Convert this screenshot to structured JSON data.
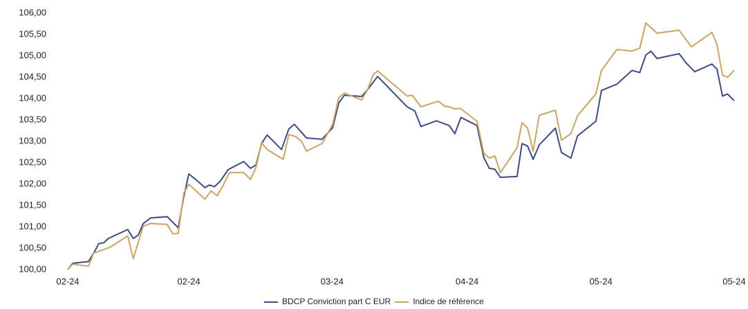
{
  "chart_data": {
    "type": "line",
    "series": [
      {
        "name": "BDCP Conviction part C EUR",
        "color": "#3d4a82",
        "x": [
          0,
          0.9,
          3.7,
          4.6,
          5.6,
          6.5,
          7.3,
          10.8,
          11.8,
          12.7,
          13.6,
          14.9,
          17.9,
          19.9,
          20.9,
          21.8,
          23.3,
          24.7,
          25.5,
          26.4,
          27.4,
          28.9,
          31.7,
          32.9,
          33.9,
          34.9,
          35.9,
          38.5,
          39.8,
          40.8,
          43.0,
          45.8,
          47.7,
          48.8,
          49.8,
          51.9,
          52.9,
          54.0,
          55.8,
          61.1,
          62.5,
          63.6,
          66.4,
          68.7,
          69.7,
          70.8,
          73.7,
          74.9,
          75.9,
          76.9,
          77.9,
          80.9,
          81.8,
          82.8,
          83.8,
          84.9,
          87.8,
          88.9,
          90.6,
          91.8,
          95.1,
          96.1,
          98.9,
          101.6,
          103.0,
          104.1,
          105.0,
          106.1,
          110.1,
          111.3,
          112.9,
          116.0,
          116.9,
          117.9,
          118.8,
          120.0
        ],
        "values": [
          100.0,
          100.15,
          100.19,
          100.37,
          100.61,
          100.63,
          100.73,
          100.94,
          100.73,
          100.81,
          101.08,
          101.21,
          101.24,
          100.98,
          101.71,
          102.24,
          102.08,
          101.92,
          101.98,
          101.94,
          102.06,
          102.34,
          102.53,
          102.37,
          102.45,
          102.95,
          103.15,
          102.81,
          103.29,
          103.4,
          103.08,
          103.05,
          103.32,
          103.9,
          104.08,
          104.06,
          104.05,
          104.21,
          104.52,
          103.81,
          103.71,
          103.35,
          103.48,
          103.37,
          103.18,
          103.56,
          103.37,
          102.63,
          102.37,
          102.35,
          102.16,
          102.18,
          102.95,
          102.89,
          102.58,
          102.92,
          103.31,
          102.74,
          102.61,
          103.13,
          103.47,
          104.19,
          104.34,
          104.66,
          104.61,
          105.02,
          105.11,
          104.94,
          105.05,
          104.84,
          104.63,
          104.81,
          104.69,
          104.06,
          104.11,
          103.95
        ]
      },
      {
        "name": "Indice de référence",
        "color": "#c9a464",
        "x": [
          0,
          0.9,
          3.7,
          4.7,
          6.5,
          7.7,
          10.8,
          11.8,
          13.6,
          14.9,
          17.9,
          18.9,
          19.9,
          20.9,
          21.8,
          24.7,
          25.8,
          26.9,
          27.9,
          29.1,
          31.7,
          32.9,
          33.9,
          34.9,
          35.9,
          38.8,
          39.8,
          41.1,
          42.1,
          43.0,
          45.8,
          47.7,
          48.8,
          49.8,
          52.9,
          54.0,
          55.0,
          55.8,
          61.1,
          62.0,
          63.6,
          66.7,
          67.9,
          68.7,
          69.7,
          70.7,
          73.7,
          74.9,
          75.9,
          76.9,
          77.9,
          80.9,
          81.8,
          82.8,
          83.8,
          84.9,
          87.8,
          88.9,
          90.6,
          91.8,
          95.1,
          96.1,
          98.9,
          101.6,
          103.0,
          104.1,
          106.1,
          110.1,
          112.3,
          116.0,
          116.9,
          117.9,
          118.8,
          120.0
        ],
        "values": [
          100.0,
          100.13,
          100.08,
          100.39,
          100.47,
          100.53,
          100.79,
          100.26,
          101.02,
          101.08,
          101.06,
          100.84,
          100.85,
          101.79,
          102.0,
          101.65,
          101.84,
          101.73,
          101.95,
          102.27,
          102.27,
          102.11,
          102.39,
          102.97,
          102.81,
          102.58,
          103.16,
          103.11,
          103.0,
          102.77,
          102.95,
          103.4,
          104.02,
          104.13,
          103.97,
          104.21,
          104.56,
          104.65,
          104.06,
          104.08,
          103.81,
          103.94,
          103.82,
          103.81,
          103.76,
          103.77,
          103.47,
          102.73,
          102.61,
          102.66,
          102.27,
          102.85,
          103.44,
          103.31,
          102.77,
          103.61,
          103.73,
          103.03,
          103.18,
          103.6,
          104.11,
          104.66,
          105.15,
          105.11,
          105.18,
          105.77,
          105.53,
          105.6,
          105.21,
          105.55,
          105.27,
          104.55,
          104.5,
          104.66
        ]
      }
    ],
    "xlim": [
      0,
      120
    ],
    "xticks": [
      {
        "value": 0,
        "label": "02-24"
      },
      {
        "value": 21.8,
        "label": "02-24"
      },
      {
        "value": 47.6,
        "label": "03-24"
      },
      {
        "value": 71.9,
        "label": "04-24"
      },
      {
        "value": 96,
        "label": "05-24"
      },
      {
        "value": 120,
        "label": "05-24"
      }
    ],
    "ylim": [
      100,
      106
    ],
    "yticks": [
      {
        "value": 100,
        "label": "100,00"
      },
      {
        "value": 100.5,
        "label": "100,50"
      },
      {
        "value": 101,
        "label": "101,00"
      },
      {
        "value": 101.5,
        "label": "101,50"
      },
      {
        "value": 102,
        "label": "102,00"
      },
      {
        "value": 102.5,
        "label": "102,50"
      },
      {
        "value": 103,
        "label": "103,00"
      },
      {
        "value": 103.5,
        "label": "103,50"
      },
      {
        "value": 104,
        "label": "104,00"
      },
      {
        "value": 104.5,
        "label": "104,50"
      },
      {
        "value": 105,
        "label": "105,00"
      },
      {
        "value": 105.5,
        "label": "105,50"
      },
      {
        "value": 106,
        "label": "106,00"
      }
    ],
    "grid": false,
    "legend": "bottom"
  }
}
